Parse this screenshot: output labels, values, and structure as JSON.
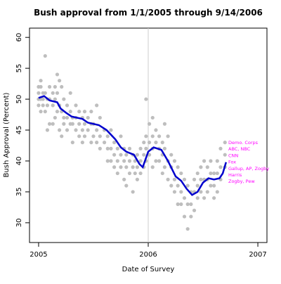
{
  "chart_data": {
    "type": "scatter",
    "title": "Bush approval from 1/1/2005 through 9/14/2006",
    "x_label": "Date of Survey",
    "y_label": "Bush Approval (Percent)",
    "xlim": [
      2004.917,
      2007.083
    ],
    "ylim": [
      26.8,
      61.5
    ],
    "xticks": [
      2005,
      2006,
      2007
    ],
    "yticks": [
      30,
      35,
      40,
      45,
      50,
      55,
      60
    ],
    "vlines": [
      2006
    ],
    "vline_color": "#cccccc",
    "annotations": [
      "Demo. Corps",
      "ABC, NBC",
      "CNN",
      "Fox",
      "Gallup, AP, Zogby",
      "Harris",
      "Zogby, Pew"
    ],
    "annotation_color": "#ff00ff",
    "series": [
      {
        "color": "#bebebe",
        "x": [
          2005,
          2005,
          2005,
          2005,
          2005.02,
          2005.02,
          2005.02,
          2005.02,
          2005.04,
          2005.04,
          2005.04,
          2005.06,
          2005.06,
          2005.06,
          2005.08,
          2005.08,
          2005.08,
          2005.1,
          2005.1,
          2005.1,
          2005.13,
          2005.13,
          2005.13,
          2005.15,
          2005.15,
          2005.15,
          2005.17,
          2005.17,
          2005.17,
          2005.19,
          2005.19,
          2005.19,
          2005.21,
          2005.21,
          2005.21,
          2005.23,
          2005.23,
          2005.23,
          2005.26,
          2005.26,
          2005.26,
          2005.29,
          2005.29,
          2005.29,
          2005.31,
          2005.31,
          2005.31,
          2005.34,
          2005.34,
          2005.34,
          2005.37,
          2005.37,
          2005.37,
          2005.4,
          2005.4,
          2005.4,
          2005.42,
          2005.42,
          2005.42,
          2005.45,
          2005.45,
          2005.48,
          2005.48,
          2005.48,
          2005.5,
          2005.5,
          2005.53,
          2005.53,
          2005.53,
          2005.56,
          2005.56,
          2005.56,
          2005.6,
          2005.6,
          2005.63,
          2005.63,
          2005.63,
          2005.66,
          2005.66,
          2005.66,
          2005.69,
          2005.69,
          2005.69,
          2005.72,
          2005.72,
          2005.72,
          2005.75,
          2005.75,
          2005.75,
          2005.78,
          2005.78,
          2005.78,
          2005.8,
          2005.8,
          2005.8,
          2005.83,
          2005.83,
          2005.83,
          2005.86,
          2005.86,
          2005.86,
          2005.88,
          2005.88,
          2005.9,
          2005.9,
          2005.9,
          2005.93,
          2005.93,
          2005.93,
          2005.96,
          2005.96,
          2005.96,
          2005.98,
          2005.98,
          2005.98,
          2005.98,
          2006.01,
          2006.01,
          2006.01,
          2006.04,
          2006.04,
          2006.04,
          2006.04,
          2006.07,
          2006.07,
          2006.07,
          2006.1,
          2006.1,
          2006.1,
          2006.13,
          2006.13,
          2006.13,
          2006.15,
          2006.15,
          2006.15,
          2006.18,
          2006.18,
          2006.18,
          2006.21,
          2006.21,
          2006.21,
          2006.24,
          2006.24,
          2006.24,
          2006.27,
          2006.27,
          2006.27,
          2006.3,
          2006.3,
          2006.3,
          2006.33,
          2006.33,
          2006.33,
          2006.36,
          2006.36,
          2006.36,
          2006.39,
          2006.39,
          2006.39,
          2006.42,
          2006.42,
          2006.42,
          2006.45,
          2006.45,
          2006.45,
          2006.48,
          2006.48,
          2006.48,
          2006.51,
          2006.51,
          2006.51,
          2006.54,
          2006.54,
          2006.54,
          2006.57,
          2006.57,
          2006.57,
          2006.6,
          2006.6,
          2006.6,
          2006.63,
          2006.63,
          2006.63,
          2006.66,
          2006.66,
          2006.66,
          2006.7,
          2006.7,
          2006.7
        ],
        "values": [
          52,
          51,
          50,
          49,
          53,
          52,
          50,
          48,
          51,
          50,
          49,
          57,
          51,
          48,
          50,
          49,
          45,
          52,
          50,
          46,
          51,
          49,
          46,
          52,
          50,
          47,
          54,
          51,
          48,
          53,
          49,
          45,
          52,
          48,
          44,
          50,
          47,
          46,
          49,
          47,
          45,
          51,
          48,
          46,
          47,
          46,
          43,
          49,
          47,
          45,
          48,
          46,
          44,
          47,
          45,
          43,
          48,
          46,
          44,
          47,
          45,
          48,
          46,
          43,
          46,
          44,
          49,
          45,
          43,
          47,
          44,
          42,
          45,
          43,
          44,
          42,
          40,
          45,
          42,
          40,
          43,
          41,
          39,
          42,
          40,
          38,
          44,
          41,
          39,
          42,
          40,
          37,
          41,
          39,
          36,
          42,
          40,
          38,
          41,
          39,
          35,
          40,
          38,
          41,
          39,
          37,
          42,
          40,
          38,
          43,
          41,
          39,
          50,
          44,
          42,
          40,
          46,
          43,
          41,
          47,
          44,
          42,
          39,
          45,
          43,
          40,
          44,
          42,
          40,
          43,
          41,
          38,
          46,
          42,
          39,
          44,
          40,
          37,
          41,
          39,
          36,
          40,
          37,
          35,
          39,
          36,
          33,
          38,
          35,
          33,
          37,
          34,
          31,
          36,
          33,
          29,
          35,
          33,
          31,
          37,
          35,
          32,
          38,
          36,
          34,
          39,
          37,
          35,
          40,
          37,
          34,
          39,
          37,
          35,
          40,
          38,
          36,
          38,
          36,
          34,
          40,
          38,
          35,
          42,
          39,
          37,
          43,
          41,
          39
        ]
      },
      {
        "type": "line",
        "color": "#0000cd",
        "x": [
          2005.0,
          2005.05,
          2005.1,
          2005.17,
          2005.2,
          2005.25,
          2005.3,
          2005.4,
          2005.45,
          2005.55,
          2005.62,
          2005.7,
          2005.75,
          2005.8,
          2005.87,
          2005.92,
          2005.95,
          2006.0,
          2006.05,
          2006.12,
          2006.18,
          2006.25,
          2006.3,
          2006.35,
          2006.4,
          2006.45,
          2006.5,
          2006.55,
          2006.6,
          2006.65,
          2006.68,
          2006.71
        ],
        "values": [
          50.2,
          50.5,
          49.8,
          49.5,
          48.5,
          47.8,
          47.2,
          46.8,
          46.2,
          45.8,
          45.0,
          43.5,
          42.2,
          41.5,
          41.0,
          39.5,
          39.0,
          41.5,
          42.2,
          41.8,
          40.0,
          37.5,
          36.8,
          35.5,
          34.5,
          35.0,
          36.5,
          37.2,
          37.0,
          37.2,
          38.0,
          39.8
        ]
      }
    ]
  }
}
